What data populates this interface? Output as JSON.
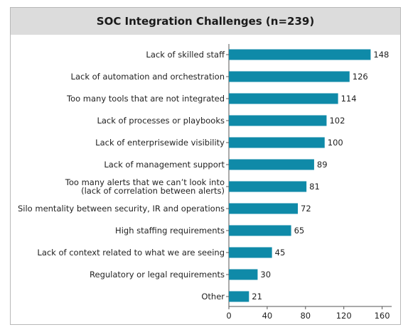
{
  "chart_data": {
    "type": "bar",
    "orientation": "horizontal",
    "title": "SOC Integration Challenges (n=239)",
    "categories": [
      "Lack of skilled staff",
      "Lack of automation and orchestration",
      "Too many tools that are not integrated",
      "Lack of processes or playbooks",
      "Lack of enterprisewide visibility",
      "Lack of management support",
      "Too many alerts that we can’t look into\n(lack of correlation between alerts)",
      "Silo mentality between security, IR and operations",
      "High staffing requirements",
      "Lack of context related to what we are seeing",
      "Regulatory or legal requirements",
      "Other"
    ],
    "values": [
      148,
      126,
      114,
      102,
      100,
      89,
      81,
      72,
      65,
      45,
      30,
      21
    ],
    "xticks": [
      0,
      40,
      80,
      120,
      160
    ],
    "xlim": [
      0,
      170
    ],
    "grid": false,
    "bar_color": "#0f8aa8"
  }
}
